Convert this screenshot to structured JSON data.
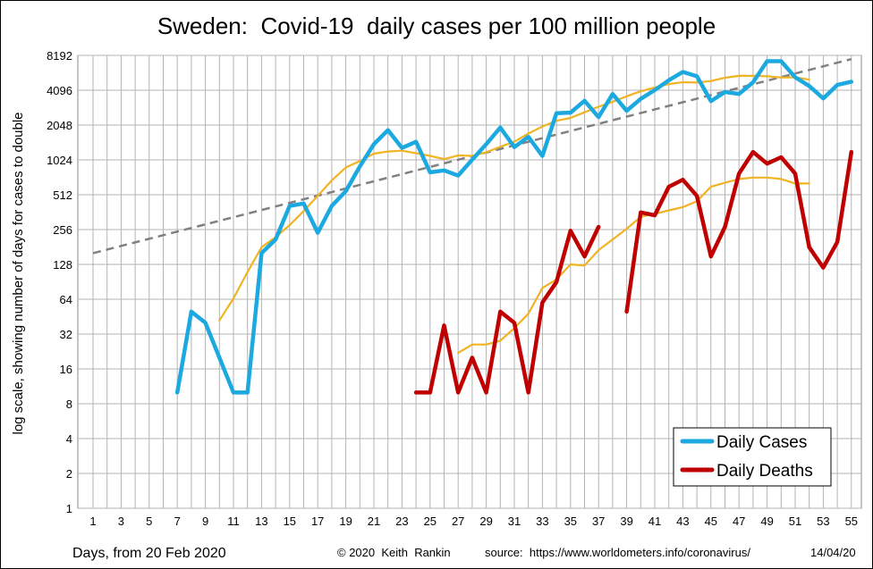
{
  "chart_data": {
    "type": "line",
    "title": "Sweden:  Covid-19  daily cases per 100 million people",
    "xlabel": "Days, from 20 Feb 2020",
    "ylabel": "log scale, showing number of days for cases to double",
    "y_scale": "log2",
    "ylim": [
      1,
      8192
    ],
    "xlim": [
      1,
      55
    ],
    "y_ticks": [
      "1",
      "2",
      "4",
      "8",
      "16",
      "32",
      "64",
      "128",
      "256",
      "512",
      "1024",
      "2048",
      "4096",
      "8192"
    ],
    "x_ticks": [
      "1",
      "3",
      "5",
      "7",
      "9",
      "11",
      "13",
      "15",
      "17",
      "19",
      "21",
      "23",
      "25",
      "27",
      "29",
      "31",
      "33",
      "35",
      "37",
      "39",
      "41",
      "43",
      "45",
      "47",
      "49",
      "51",
      "53",
      "55"
    ],
    "grid": true,
    "legend_position": "bottom-right",
    "series": [
      {
        "name": "Daily Cases",
        "color": "#1BA9E0",
        "points": [
          [
            7,
            10
          ],
          [
            8,
            50
          ],
          [
            9,
            40
          ],
          [
            10,
            20
          ],
          [
            11,
            10
          ],
          [
            12,
            10
          ],
          [
            13,
            160
          ],
          [
            14,
            210
          ],
          [
            15,
            410
          ],
          [
            16,
            430
          ],
          [
            17,
            240
          ],
          [
            18,
            410
          ],
          [
            19,
            550
          ],
          [
            20,
            900
          ],
          [
            21,
            1400
          ],
          [
            22,
            1850
          ],
          [
            23,
            1300
          ],
          [
            24,
            1470
          ],
          [
            25,
            800
          ],
          [
            26,
            830
          ],
          [
            27,
            750
          ],
          [
            28,
            1030
          ],
          [
            29,
            1400
          ],
          [
            30,
            1950
          ],
          [
            31,
            1320
          ],
          [
            32,
            1620
          ],
          [
            33,
            1110
          ],
          [
            34,
            2590
          ],
          [
            35,
            2620
          ],
          [
            36,
            3320
          ],
          [
            37,
            2400
          ],
          [
            38,
            3800
          ],
          [
            39,
            2720
          ],
          [
            40,
            3450
          ],
          [
            41,
            4100
          ],
          [
            42,
            5000
          ],
          [
            43,
            5900
          ],
          [
            44,
            5400
          ],
          [
            45,
            3300
          ],
          [
            46,
            3950
          ],
          [
            47,
            3800
          ],
          [
            48,
            4800
          ],
          [
            49,
            7300
          ],
          [
            50,
            7300
          ],
          [
            51,
            5300
          ],
          [
            52,
            4450
          ],
          [
            53,
            3480
          ],
          [
            54,
            4550
          ],
          [
            55,
            4850
          ]
        ]
      },
      {
        "name": "Daily Deaths",
        "color": "#C00000",
        "segments": [
          [
            [
              24,
              10
            ],
            [
              25,
              10
            ],
            [
              26,
              38
            ],
            [
              27,
              10
            ],
            [
              28,
              20
            ],
            [
              29,
              10
            ],
            [
              30,
              50
            ],
            [
              31,
              40
            ],
            [
              32,
              10
            ],
            [
              33,
              60
            ],
            [
              34,
              90
            ],
            [
              35,
              250
            ],
            [
              36,
              150
            ],
            [
              37,
              270
            ]
          ],
          [
            [
              39,
              50
            ],
            [
              40,
              360
            ],
            [
              41,
              340
            ],
            [
              42,
              600
            ],
            [
              43,
              690
            ],
            [
              44,
              500
            ],
            [
              45,
              150
            ],
            [
              46,
              270
            ],
            [
              47,
              780
            ],
            [
              48,
              1200
            ],
            [
              49,
              950
            ],
            [
              50,
              1080
            ],
            [
              51,
              780
            ],
            [
              52,
              180
            ],
            [
              53,
              120
            ],
            [
              54,
              200
            ],
            [
              55,
              1200
            ]
          ]
        ]
      },
      {
        "color": "#F0B323",
        "segments": [
          [
            [
              10,
              42
            ],
            [
              11,
              65
            ],
            [
              12,
              110
            ],
            [
              13,
              180
            ],
            [
              14,
              220
            ],
            [
              15,
              280
            ],
            [
              16,
              370
            ],
            [
              17,
              500
            ],
            [
              18,
              680
            ],
            [
              19,
              880
            ],
            [
              20,
              1000
            ],
            [
              21,
              1160
            ],
            [
              22,
              1210
            ],
            [
              23,
              1230
            ],
            [
              24,
              1170
            ],
            [
              25,
              1110
            ],
            [
              26,
              1040
            ],
            [
              27,
              1120
            ],
            [
              28,
              1110
            ],
            [
              29,
              1190
            ],
            [
              30,
              1330
            ],
            [
              31,
              1470
            ],
            [
              32,
              1730
            ],
            [
              33,
              1990
            ],
            [
              34,
              2230
            ],
            [
              35,
              2360
            ],
            [
              36,
              2640
            ],
            [
              37,
              2950
            ],
            [
              38,
              3250
            ],
            [
              39,
              3630
            ],
            [
              40,
              4010
            ],
            [
              41,
              4330
            ],
            [
              42,
              4630
            ],
            [
              43,
              4810
            ],
            [
              44,
              4770
            ],
            [
              45,
              4920
            ],
            [
              46,
              5250
            ],
            [
              47,
              5450
            ],
            [
              48,
              5460
            ],
            [
              49,
              5400
            ],
            [
              50,
              5270
            ],
            [
              51,
              5300
            ],
            [
              52,
              5050
            ]
          ],
          [
            [
              27,
              22
            ],
            [
              28,
              26
            ],
            [
              29,
              26
            ],
            [
              30,
              28
            ],
            [
              31,
              36
            ],
            [
              32,
              48
            ],
            [
              33,
              80
            ],
            [
              34,
              95
            ],
            [
              35,
              128
            ],
            [
              36,
              125
            ],
            [
              37,
              170
            ],
            [
              38,
              210
            ],
            [
              39,
              260
            ],
            [
              40,
              330
            ],
            [
              41,
              350
            ],
            [
              42,
              375
            ],
            [
              43,
              400
            ],
            [
              44,
              450
            ],
            [
              45,
              600
            ],
            [
              46,
              650
            ],
            [
              47,
              700
            ],
            [
              48,
              720
            ],
            [
              49,
              720
            ],
            [
              50,
              700
            ],
            [
              51,
              640
            ],
            [
              52,
              640
            ]
          ]
        ]
      },
      {
        "color": "#808080",
        "style": "dashed",
        "points": [
          [
            1,
            160
          ],
          [
            55,
            7600
          ]
        ]
      }
    ],
    "annotations": [
      "© 2020  Keith  Rankin",
      "source:  https://www.worldometers.info/coronavirus/",
      "14/04/20"
    ]
  }
}
